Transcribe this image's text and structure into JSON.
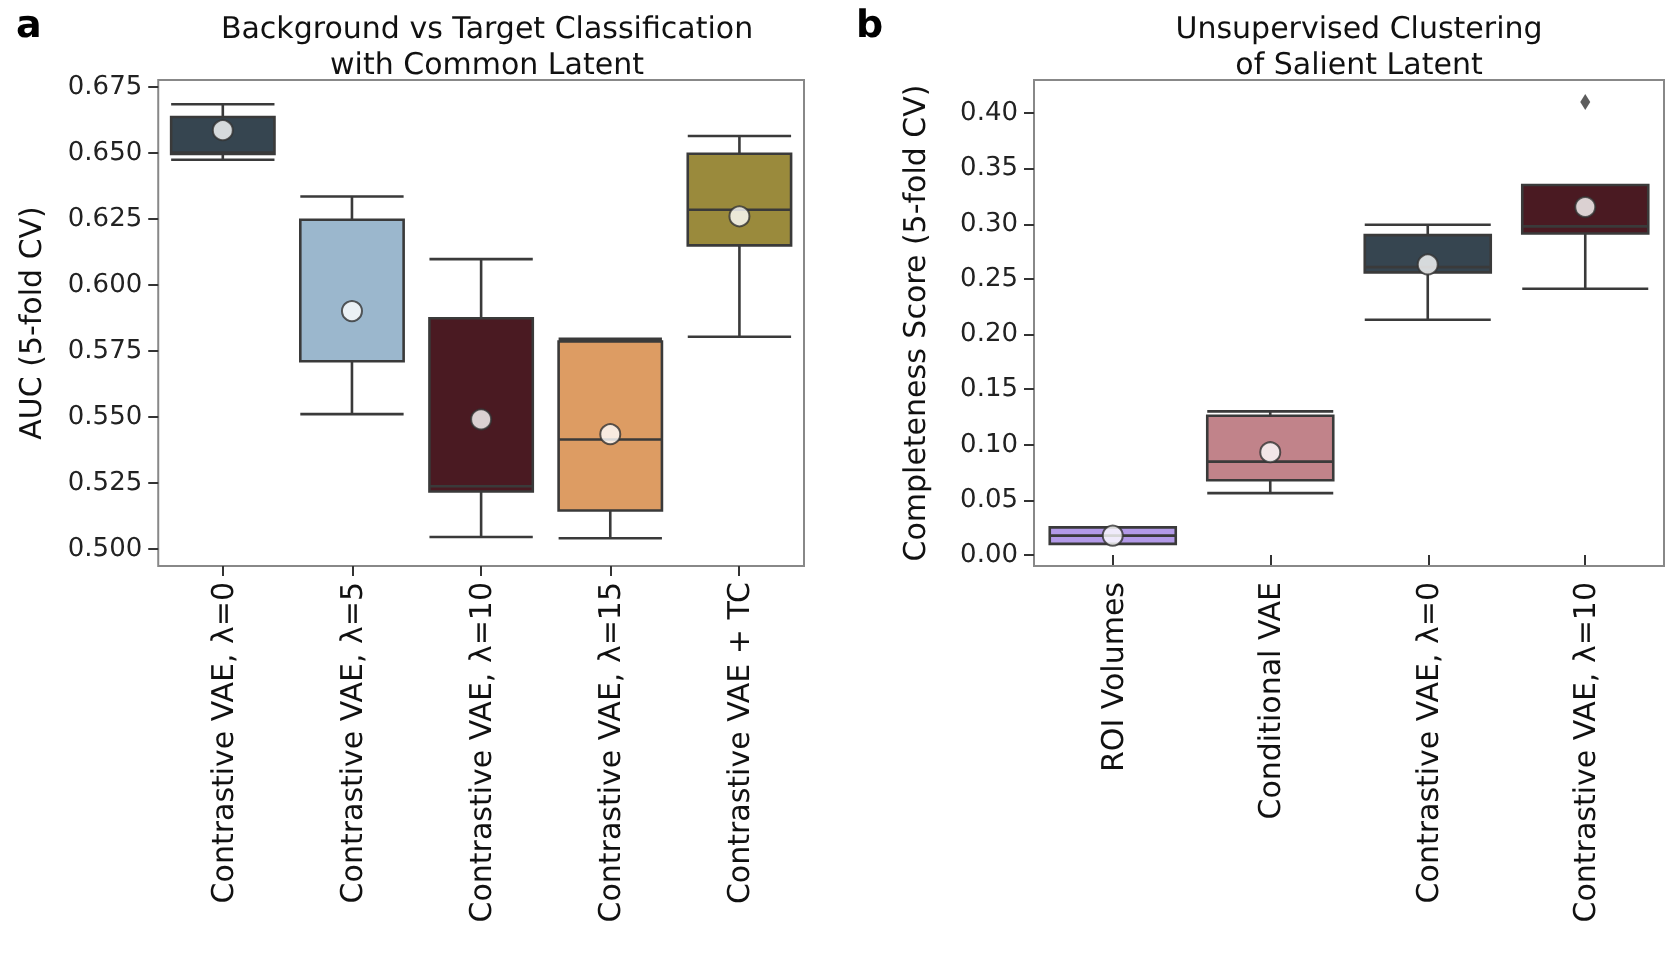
{
  "chart_data": [
    {
      "type": "box",
      "title": "Background vs Target Classification\nwith Common Latent",
      "ylabel": "AUC (5-fold CV)",
      "annotations": [
        "a"
      ],
      "categories": [
        "Contrastive VAE, λ=0",
        "Contrastive VAE, λ=5",
        "Contrastive VAE, λ=10",
        "Contrastive VAE, λ=15",
        "Contrastive VAE + TC"
      ],
      "colors": [
        "#364550",
        "#9bb7cd",
        "#4a1a22",
        "#dd9c63",
        "#9a8a3c"
      ],
      "boxes": [
        {
          "low": 0.6473,
          "q1": 0.6495,
          "median": 0.65,
          "q3": 0.6635,
          "high": 0.6683,
          "mean": 0.6585
        },
        {
          "low": 0.551,
          "q1": 0.571,
          "median": 0.571,
          "q3": 0.6246,
          "high": 0.6334,
          "mean": 0.59
        },
        {
          "low": 0.5045,
          "q1": 0.5217,
          "median": 0.5237,
          "q3": 0.5873,
          "high": 0.6097,
          "mean": 0.549
        },
        {
          "low": 0.504,
          "q1": 0.5145,
          "median": 0.5414,
          "q3": 0.5785,
          "high": 0.5795,
          "mean": 0.5434
        },
        {
          "low": 0.5803,
          "q1": 0.6149,
          "median": 0.6284,
          "q3": 0.6496,
          "high": 0.6563,
          "mean": 0.6259
        }
      ],
      "ylim": [
        0.4935,
        0.6775
      ],
      "yticks": [
        {
          "value": 0.5,
          "label": "0.500"
        },
        {
          "value": 0.525,
          "label": "0.525"
        },
        {
          "value": 0.55,
          "label": "0.550"
        },
        {
          "value": 0.575,
          "label": "0.575"
        },
        {
          "value": 0.6,
          "label": "0.600"
        },
        {
          "value": 0.625,
          "label": "0.625"
        },
        {
          "value": 0.65,
          "label": "0.650"
        },
        {
          "value": 0.675,
          "label": "0.675"
        }
      ],
      "grid": false
    },
    {
      "type": "box",
      "title": "Unsupervised Clustering\nof Salient Latent",
      "ylabel": "Completeness Score (5-fold CV)",
      "annotations": [
        "b"
      ],
      "categories": [
        "ROI Volumes",
        "Conditional VAE",
        "Contrastive VAE, λ=0",
        "Contrastive VAE, λ=10"
      ],
      "colors": [
        "#b39ae8",
        "#c1838a",
        "#364550",
        "#4a1a22"
      ],
      "boxes": [
        {
          "low": 0.01,
          "q1": 0.01,
          "median": 0.0175,
          "q3": 0.025,
          "high": 0.025,
          "mean": 0.0175
        },
        {
          "low": 0.056,
          "q1": 0.0676,
          "median": 0.0845,
          "q3": 0.126,
          "high": 0.13,
          "mean": 0.093
        },
        {
          "low": 0.213,
          "q1": 0.2558,
          "median": 0.2606,
          "q3": 0.2896,
          "high": 0.299,
          "mean": 0.263
        },
        {
          "low": 0.241,
          "q1": 0.291,
          "median": 0.2975,
          "q3": 0.335,
          "high": 0.335,
          "mean": 0.315,
          "outliers": [
            0.41
          ]
        }
      ],
      "ylim": [
        -0.01,
        0.43
      ],
      "yticks": [
        {
          "value": 0,
          "label": "0.00"
        },
        {
          "value": 0.05,
          "label": "0.05"
        },
        {
          "value": 0.1,
          "label": "0.10"
        },
        {
          "value": 0.15,
          "label": "0.15"
        },
        {
          "value": 0.2,
          "label": "0.20"
        },
        {
          "value": 0.25,
          "label": "0.25"
        },
        {
          "value": 0.3,
          "label": "0.30"
        },
        {
          "value": 0.35,
          "label": "0.35"
        },
        {
          "value": 0.4,
          "label": "0.40"
        }
      ],
      "grid": false
    }
  ]
}
